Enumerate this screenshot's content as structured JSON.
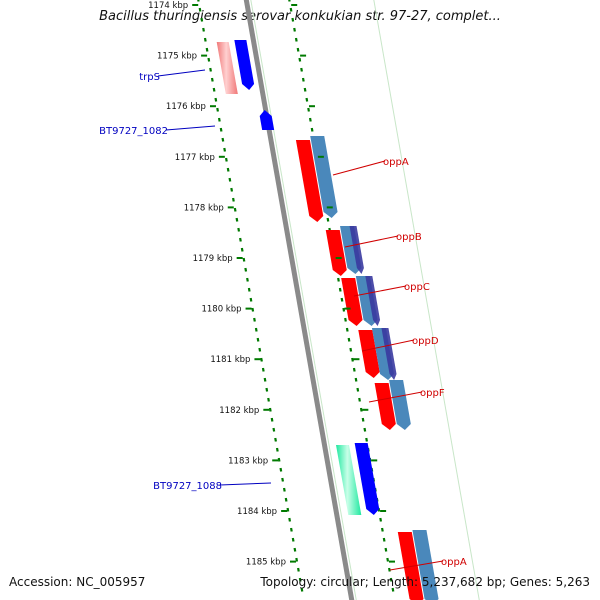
{
  "title": "Bacillus thuringiensis serovar konkukian str. 97-27, complet...",
  "footer": {
    "accession": "Accession: NC_005957",
    "summary": "Topology: circular; Length: 5,237,682 bp; Genes: 5,263"
  },
  "ticks": [
    {
      "label": "1174 kbp",
      "kbp": 1174
    },
    {
      "label": "1175 kbp",
      "kbp": 1175
    },
    {
      "label": "1176 kbp",
      "kbp": 1176
    },
    {
      "label": "1177 kbp",
      "kbp": 1177
    },
    {
      "label": "1178 kbp",
      "kbp": 1178
    },
    {
      "label": "1179 kbp",
      "kbp": 1179
    },
    {
      "label": "1180 kbp",
      "kbp": 1180
    },
    {
      "label": "1181 kbp",
      "kbp": 1181
    },
    {
      "label": "1182 kbp",
      "kbp": 1182
    },
    {
      "label": "1183 kbp",
      "kbp": 1183
    },
    {
      "label": "1184 kbp",
      "kbp": 1184
    },
    {
      "label": "1185 kbp",
      "kbp": 1185
    }
  ],
  "gene_labels": [
    {
      "text": "trpS",
      "side": "left",
      "color": "#0000c0"
    },
    {
      "text": "BT9727_1082",
      "side": "left",
      "color": "#0000c0"
    },
    {
      "text": "oppA",
      "side": "right",
      "color": "#d00000"
    },
    {
      "text": "oppB",
      "side": "right",
      "color": "#d00000"
    },
    {
      "text": "oppC",
      "side": "right",
      "color": "#d00000"
    },
    {
      "text": "oppD",
      "side": "right",
      "color": "#d00000"
    },
    {
      "text": "oppF",
      "side": "right",
      "color": "#d00000"
    },
    {
      "text": "BT9727_1088",
      "side": "left",
      "color": "#0000c0"
    },
    {
      "text": "oppA",
      "side": "right",
      "color": "#d00000"
    }
  ],
  "colors": {
    "backbone": "#8a8a8a",
    "tick_green": "#007a00",
    "track_outline": "#c8e6c8",
    "blue_gene": "#0000ff",
    "red_gene": "#ff0000",
    "steel_gene": "#4a88bb",
    "pink_gene": "#f07878",
    "teal_gene": "#20e8a0",
    "purple_overlap": "#3a3aa0",
    "left_label": "#0000c0",
    "right_label": "#d00000"
  }
}
